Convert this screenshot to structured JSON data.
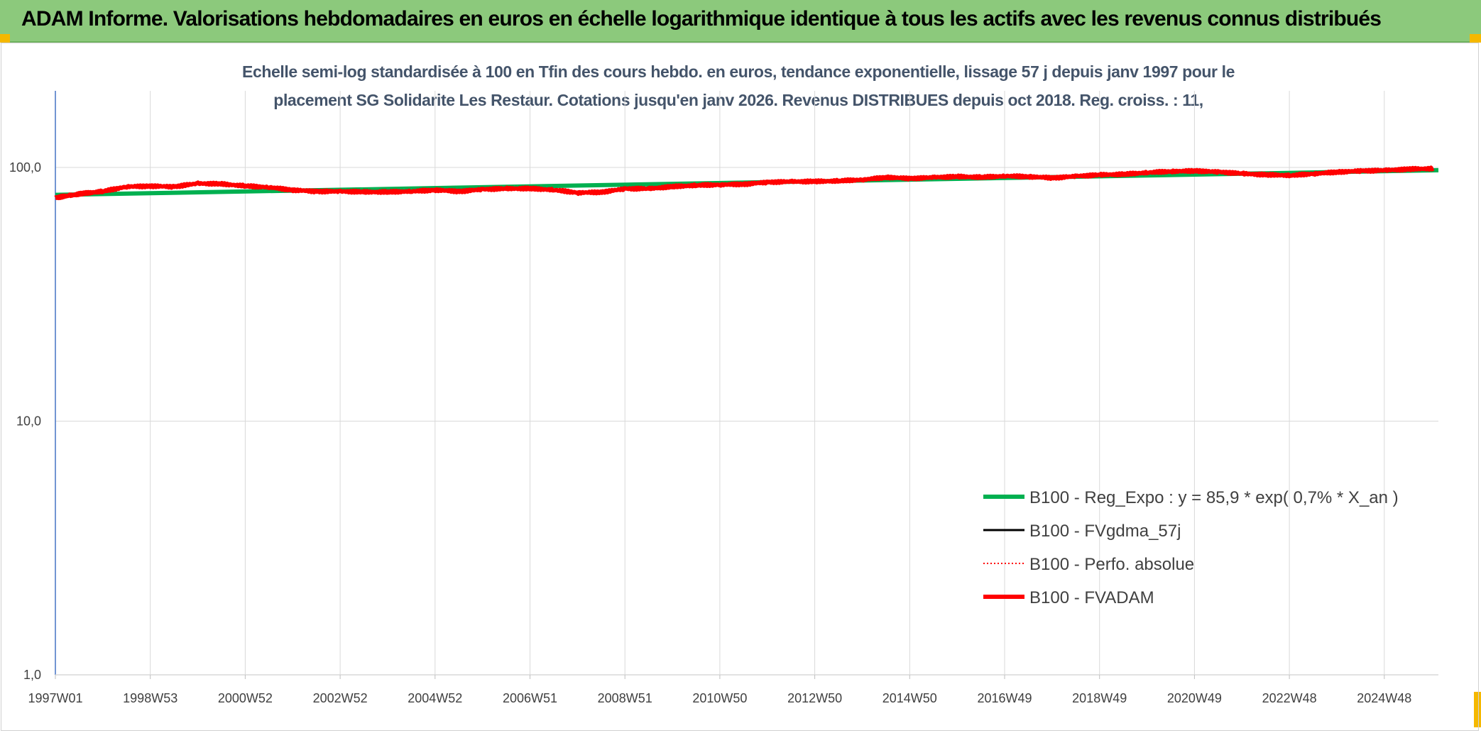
{
  "header": {
    "title": "ADAM Informe. Valorisations hebdomadaires en euros en échelle logarithmique identique à tous les actifs avec les revenus connus distribués",
    "background_color": "#8cc97c",
    "corner_color": "#f5b800"
  },
  "chart_data": {
    "type": "line",
    "title_line1": "Echelle semi-log standardisée à 100 en Tfin des cours hebdo. en euros, tendance exponentielle, lissage 57 j depuis janv 1997 pour le",
    "title_line2": "placement SG Solidarite Les Restaur. Cotations jusqu'en janv 2026. Revenus DISTRIBUES depuis oct 2018. Reg. croiss. : 11,",
    "y_scale": "log",
    "ylim": [
      1,
      100
    ],
    "y_ticks": [
      "1,0",
      "10,0",
      "100,0"
    ],
    "x_ticks": [
      "1997W01",
      "1998W53",
      "2000W52",
      "2002W52",
      "2004W52",
      "2006W51",
      "2008W51",
      "2010W50",
      "2012W50",
      "2014W50",
      "2016W49",
      "2018W49",
      "2020W49",
      "2022W48",
      "2024W48"
    ],
    "x_range_years": [
      1997.0,
      2026.1
    ],
    "grid": true,
    "legend_position": "bottom-right",
    "series": [
      {
        "name": "B100 - Reg_Expo : y = 85,9 * exp( 0,7% *  X_an )",
        "color": "#00b050",
        "style": "solid-thick",
        "x": [
          1997.0,
          2026.1
        ],
        "y": [
          78.0,
          97.5
        ]
      },
      {
        "name": "B100 - FVgdma_57j",
        "color": "#000000",
        "style": "solid",
        "x": [],
        "y": []
      },
      {
        "name": "B100 - Perfo. absolue",
        "color": "#ff0000",
        "style": "dotted",
        "x": [],
        "y": []
      },
      {
        "name": "B100 - FVADAM",
        "color": "#ff0000",
        "style": "solid-thick",
        "x": [
          1997.0,
          1997.3,
          1997.6,
          1998.0,
          1998.5,
          1999.0,
          1999.5,
          2000.0,
          2000.5,
          2001.0,
          2001.5,
          2002.0,
          2002.5,
          2003.0,
          2003.5,
          2004.0,
          2004.5,
          2005.0,
          2005.5,
          2006.0,
          2006.5,
          2007.0,
          2007.5,
          2008.0,
          2008.5,
          2009.0,
          2009.5,
          2010.0,
          2010.5,
          2011.0,
          2011.5,
          2012.0,
          2012.5,
          2013.0,
          2013.5,
          2014.0,
          2014.5,
          2015.0,
          2015.5,
          2016.0,
          2016.5,
          2017.0,
          2017.5,
          2018.0,
          2018.5,
          2019.0,
          2019.5,
          2020.0,
          2020.5,
          2021.0,
          2021.5,
          2022.0,
          2022.5,
          2023.0,
          2023.5,
          2024.0,
          2024.5,
          2025.0,
          2025.5,
          2026.0
        ],
        "y": [
          76.0,
          77.5,
          79.0,
          80.5,
          84.0,
          84.5,
          84.0,
          86.5,
          86.0,
          84.5,
          83.5,
          81.5,
          80.5,
          80.5,
          80.0,
          80.0,
          80.5,
          81.5,
          80.5,
          82.0,
          82.5,
          82.5,
          81.5,
          79.5,
          80.0,
          82.5,
          82.5,
          84.0,
          85.0,
          85.5,
          86.0,
          87.5,
          88.0,
          88.0,
          88.5,
          89.5,
          91.5,
          90.5,
          91.5,
          92.0,
          91.5,
          92.5,
          92.0,
          91.0,
          92.5,
          93.5,
          94.0,
          95.5,
          96.5,
          97.0,
          96.0,
          94.5,
          93.5,
          93.0,
          94.5,
          96.0,
          97.0,
          97.5,
          98.5,
          99.0
        ]
      }
    ]
  }
}
